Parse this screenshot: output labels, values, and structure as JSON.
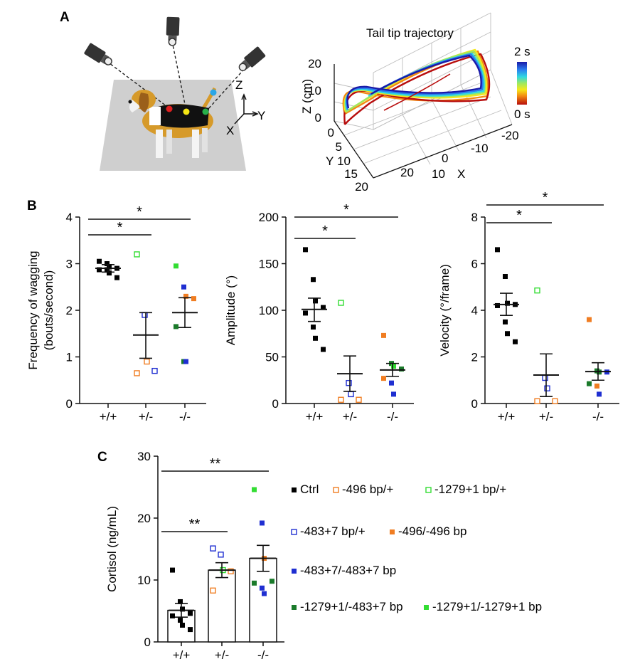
{
  "panels": {
    "A": {
      "label": "A",
      "trajectory_title": "Tail tip trajectory",
      "colorbar_top": "2 s",
      "colorbar_bottom": "0 s",
      "z_axis_label": "Z (cm)",
      "y_axis_label": "Y",
      "x_axis_label": "X",
      "z_ticks": [
        "0",
        "10",
        "20"
      ],
      "y_ticks": [
        "0",
        "5",
        "10",
        "15",
        "20"
      ],
      "x_ticks": [
        "20",
        "10",
        "0",
        "-10",
        "-20"
      ],
      "axis_legend": {
        "z": "Z",
        "y": "Y",
        "x": "X"
      }
    },
    "B": {
      "label": "B"
    },
    "C": {
      "label": "C"
    }
  },
  "chart_data": [
    {
      "id": "B1",
      "type": "scatter",
      "ylabel_line1": "Frequency of wagging",
      "ylabel_line2": "(bouts/second)",
      "ylim": [
        0,
        4
      ],
      "yticks": [
        0,
        1,
        2,
        3,
        4
      ],
      "categories": [
        "+/+",
        "+/-",
        "-/-"
      ],
      "groups": [
        {
          "mean": 2.9,
          "sem_low": 2.82,
          "sem_high": 2.98,
          "points": [
            {
              "v": 3.05,
              "c": "#000000",
              "f": true
            },
            {
              "v": 3.0,
              "c": "#000000",
              "f": true
            },
            {
              "v": 2.93,
              "c": "#000000",
              "f": true
            },
            {
              "v": 2.9,
              "c": "#000000",
              "f": true
            },
            {
              "v": 2.87,
              "c": "#000000",
              "f": true
            },
            {
              "v": 2.87,
              "c": "#000000",
              "f": true
            },
            {
              "v": 2.8,
              "c": "#000000",
              "f": true
            },
            {
              "v": 2.7,
              "c": "#000000",
              "f": true
            }
          ]
        },
        {
          "mean": 1.47,
          "sem_low": 0.97,
          "sem_high": 1.95,
          "points": [
            {
              "v": 3.2,
              "c": "#33dd33",
              "f": false
            },
            {
              "v": 1.9,
              "c": "#1f2fd1",
              "f": false
            },
            {
              "v": 0.9,
              "c": "#f07d22",
              "f": false
            },
            {
              "v": 0.7,
              "c": "#1f2fd1",
              "f": false
            },
            {
              "v": 0.65,
              "c": "#f07d22",
              "f": false
            }
          ]
        },
        {
          "mean": 1.95,
          "sem_low": 1.63,
          "sem_high": 2.27,
          "points": [
            {
              "v": 2.95,
              "c": "#33dd33",
              "f": true
            },
            {
              "v": 2.5,
              "c": "#1f2fd1",
              "f": true
            },
            {
              "v": 2.3,
              "c": "#f07d22",
              "f": true
            },
            {
              "v": 2.25,
              "c": "#f07d22",
              "f": true
            },
            {
              "v": 1.65,
              "c": "#1a7a2a",
              "f": true
            },
            {
              "v": 0.9,
              "c": "#1a7a2a",
              "f": true
            },
            {
              "v": 0.9,
              "c": "#1f2fd1",
              "f": true
            }
          ]
        }
      ],
      "significance": [
        {
          "from": 0,
          "to": 1,
          "label": "*"
        },
        {
          "from": 0,
          "to": 2,
          "label": "*"
        }
      ]
    },
    {
      "id": "B2",
      "type": "scatter",
      "ylabel_line1": "Amplitude (°)",
      "ylabel_line2": "",
      "ylim": [
        0,
        200
      ],
      "yticks": [
        0,
        50,
        100,
        150,
        200
      ],
      "categories": [
        "+/+",
        "+/-",
        "-/-"
      ],
      "groups": [
        {
          "mean": 101,
          "sem_low": 88,
          "sem_high": 113,
          "points": [
            {
              "v": 165,
              "c": "#000000",
              "f": true
            },
            {
              "v": 133,
              "c": "#000000",
              "f": true
            },
            {
              "v": 110,
              "c": "#000000",
              "f": true
            },
            {
              "v": 103,
              "c": "#000000",
              "f": true
            },
            {
              "v": 97,
              "c": "#000000",
              "f": true
            },
            {
              "v": 82,
              "c": "#000000",
              "f": true
            },
            {
              "v": 70,
              "c": "#000000",
              "f": true
            },
            {
              "v": 58,
              "c": "#000000",
              "f": true
            }
          ]
        },
        {
          "mean": 32,
          "sem_low": 13,
          "sem_high": 51,
          "points": [
            {
              "v": 108,
              "c": "#33dd33",
              "f": false
            },
            {
              "v": 22,
              "c": "#1f2fd1",
              "f": false
            },
            {
              "v": 10,
              "c": "#1f2fd1",
              "f": false
            },
            {
              "v": 4,
              "c": "#f07d22",
              "f": false
            },
            {
              "v": 4,
              "c": "#f07d22",
              "f": false
            }
          ]
        },
        {
          "mean": 36,
          "sem_low": 29,
          "sem_high": 43,
          "points": [
            {
              "v": 73,
              "c": "#f07d22",
              "f": true
            },
            {
              "v": 43,
              "c": "#1a7a2a",
              "f": true
            },
            {
              "v": 40,
              "c": "#33dd33",
              "f": true
            },
            {
              "v": 37,
              "c": "#1a7a2a",
              "f": true
            },
            {
              "v": 27,
              "c": "#f07d22",
              "f": true
            },
            {
              "v": 22,
              "c": "#1f2fd1",
              "f": true
            },
            {
              "v": 10,
              "c": "#1f2fd1",
              "f": true
            }
          ]
        }
      ],
      "significance": [
        {
          "from": 0,
          "to": 1,
          "label": "*"
        },
        {
          "from": 0,
          "to": 2,
          "label": "*"
        }
      ]
    },
    {
      "id": "B3",
      "type": "scatter",
      "ylabel_line1": "Velocity (°/frame)",
      "ylabel_line2": "",
      "ylim": [
        0,
        8
      ],
      "yticks": [
        0,
        2,
        4,
        6,
        8
      ],
      "categories": [
        "+/+",
        "+/-",
        "-/-"
      ],
      "groups": [
        {
          "mean": 4.25,
          "sem_low": 3.78,
          "sem_high": 4.73,
          "points": [
            {
              "v": 6.6,
              "c": "#000000",
              "f": true
            },
            {
              "v": 5.45,
              "c": "#000000",
              "f": true
            },
            {
              "v": 4.3,
              "c": "#000000",
              "f": true
            },
            {
              "v": 4.25,
              "c": "#000000",
              "f": true
            },
            {
              "v": 4.2,
              "c": "#000000",
              "f": true
            },
            {
              "v": 3.5,
              "c": "#000000",
              "f": true
            },
            {
              "v": 3.0,
              "c": "#000000",
              "f": true
            },
            {
              "v": 2.65,
              "c": "#000000",
              "f": true
            }
          ]
        },
        {
          "mean": 1.22,
          "sem_low": 0.3,
          "sem_high": 2.13,
          "points": [
            {
              "v": 4.85,
              "c": "#33dd33",
              "f": false
            },
            {
              "v": 1.1,
              "c": "#1f2fd1",
              "f": false
            },
            {
              "v": 0.65,
              "c": "#1f2fd1",
              "f": false
            },
            {
              "v": 0.1,
              "c": "#f07d22",
              "f": false
            },
            {
              "v": 0.1,
              "c": "#f07d22",
              "f": false
            }
          ]
        },
        {
          "mean": 1.37,
          "sem_low": 1.0,
          "sem_high": 1.75,
          "points": [
            {
              "v": 3.6,
              "c": "#f07d22",
              "f": true
            },
            {
              "v": 1.4,
              "c": "#1a7a2a",
              "f": true
            },
            {
              "v": 1.35,
              "c": "#1a7a2a",
              "f": true
            },
            {
              "v": 1.35,
              "c": "#1f2fd1",
              "f": true
            },
            {
              "v": 0.85,
              "c": "#1a7a2a",
              "f": true
            },
            {
              "v": 0.75,
              "c": "#f07d22",
              "f": true
            },
            {
              "v": 0.4,
              "c": "#1f2fd1",
              "f": true
            }
          ]
        }
      ],
      "significance": [
        {
          "from": 0,
          "to": 1,
          "label": "*"
        },
        {
          "from": 0,
          "to": 2,
          "label": "*"
        }
      ]
    },
    {
      "id": "C",
      "type": "bar",
      "ylabel_line1": "Cortisol (ng/mL)",
      "ylabel_line2": "",
      "ylim": [
        0,
        30
      ],
      "yticks": [
        0,
        10,
        20,
        30
      ],
      "categories": [
        "+/+",
        "+/-",
        "-/-"
      ],
      "groups": [
        {
          "mean": 5.1,
          "sem_low": 4.0,
          "sem_high": 6.2,
          "points": [
            {
              "v": 11.6,
              "c": "#000000",
              "f": true
            },
            {
              "v": 6.5,
              "c": "#000000",
              "f": true
            },
            {
              "v": 5.3,
              "c": "#000000",
              "f": true
            },
            {
              "v": 4.6,
              "c": "#000000",
              "f": true
            },
            {
              "v": 4.2,
              "c": "#000000",
              "f": true
            },
            {
              "v": 3.5,
              "c": "#000000",
              "f": true
            },
            {
              "v": 2.7,
              "c": "#000000",
              "f": true
            },
            {
              "v": 2.0,
              "c": "#000000",
              "f": true
            }
          ]
        },
        {
          "mean": 11.6,
          "sem_low": 10.4,
          "sem_high": 12.8,
          "points": [
            {
              "v": 15.1,
              "c": "#1f2fd1",
              "f": false
            },
            {
              "v": 14.1,
              "c": "#1f2fd1",
              "f": false
            },
            {
              "v": 11.6,
              "c": "#33dd33",
              "f": false
            },
            {
              "v": 11.4,
              "c": "#f07d22",
              "f": false
            },
            {
              "v": 8.3,
              "c": "#f07d22",
              "f": false
            }
          ]
        },
        {
          "mean": 13.5,
          "sem_low": 11.4,
          "sem_high": 15.6,
          "points": [
            {
              "v": 24.6,
              "c": "#33dd33",
              "f": true
            },
            {
              "v": 19.2,
              "c": "#1f2fd1",
              "f": true
            },
            {
              "v": 13.5,
              "c": "#f07d22",
              "f": true
            },
            {
              "v": 9.8,
              "c": "#1a7a2a",
              "f": true
            },
            {
              "v": 9.5,
              "c": "#1a7a2a",
              "f": true
            },
            {
              "v": 8.7,
              "c": "#1f2fd1",
              "f": true
            },
            {
              "v": 7.8,
              "c": "#1f2fd1",
              "f": true
            }
          ]
        }
      ],
      "significance": [
        {
          "from": 0,
          "to": 1,
          "label": "**"
        },
        {
          "from": 0,
          "to": 2,
          "label": "**"
        }
      ]
    }
  ],
  "legend": [
    {
      "label": "Ctrl",
      "color": "#000000",
      "filled": true
    },
    {
      "label": "-496 bp/+",
      "color": "#f07d22",
      "filled": false
    },
    {
      "label": "-1279+1 bp/+",
      "color": "#33dd33",
      "filled": false
    },
    {
      "label": "-483+7 bp/+",
      "color": "#1f2fd1",
      "filled": false
    },
    {
      "label": "-496/-496 bp",
      "color": "#f07d22",
      "filled": true
    },
    {
      "label": "-483+7/-483+7 bp",
      "color": "#1f2fd1",
      "filled": true
    },
    {
      "label": "-1279+1/-483+7 bp",
      "color": "#1a7a2a",
      "filled": true
    },
    {
      "label": "-1279+1/-1279+1 bp",
      "color": "#33dd33",
      "filled": true
    }
  ]
}
